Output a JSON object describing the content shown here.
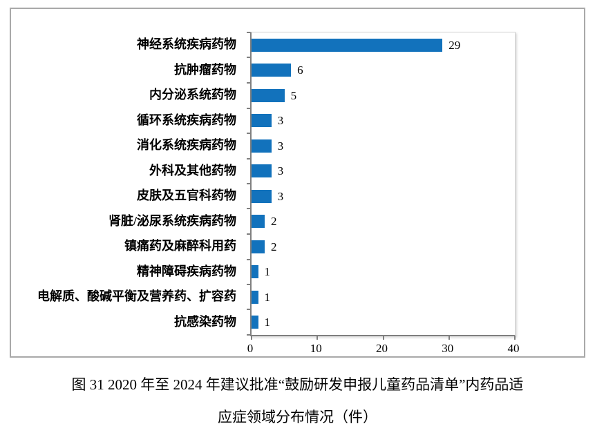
{
  "figure": {
    "caption_line1": "图 31  2020 年至 2024 年建议批准“鼓励研发申报儿童药品清单”内药品适",
    "caption_line2": "应症领域分布情况（件）"
  },
  "chart_data": {
    "type": "bar",
    "orientation": "horizontal",
    "title": "",
    "xlabel": "",
    "ylabel": "",
    "categories": [
      "神经系统疾病药物",
      "抗肿瘤药物",
      "内分泌系统药物",
      "循环系统疾病药物",
      "消化系统疾病药物",
      "外科及其他药物",
      "皮肤及五官科药物",
      "肾脏/泌尿系统疾病药物",
      "镇痛药及麻醉科用药",
      "精神障碍疾病药物",
      "电解质、酸碱平衡及营养药、扩容药",
      "抗感染药物"
    ],
    "values": [
      29,
      6,
      5,
      3,
      3,
      3,
      3,
      2,
      2,
      1,
      1,
      1
    ],
    "data_labels": [
      29,
      6,
      5,
      3,
      3,
      3,
      3,
      2,
      2,
      1,
      1,
      1
    ],
    "x_ticks": [
      0,
      10,
      20,
      30,
      40
    ],
    "xlim": [
      0,
      40
    ],
    "grid": false,
    "legend": "none",
    "bar_color": "#1272bc",
    "axis_color": "#7f7f7f",
    "frame_border_color": "#a9a9a9"
  }
}
